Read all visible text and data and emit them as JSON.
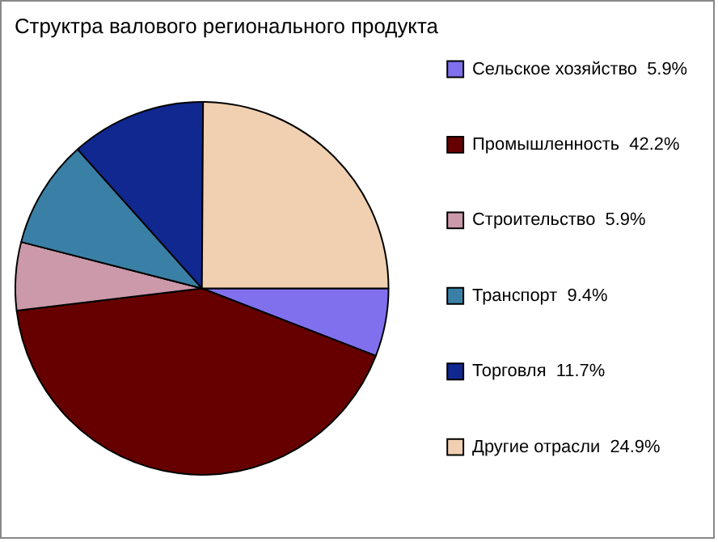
{
  "chart_data": {
    "type": "pie",
    "title": "Структра валового регионального продукта",
    "categories": [
      "Сельское хозяйство",
      "Промышленность",
      "Строительство",
      "Транспорт",
      "Торговля",
      "Другие отрасли"
    ],
    "values": [
      5.9,
      42.2,
      5.9,
      9.4,
      11.7,
      24.9
    ],
    "value_labels": [
      "5.9%",
      "42.2%",
      "5.9%",
      "9.4%",
      "11.7%",
      "24.9%"
    ],
    "colors": [
      "#8070ee",
      "#660000",
      "#cc99aa",
      "#3a80a6",
      "#102890",
      "#f0d0b0"
    ],
    "legend": "right"
  }
}
